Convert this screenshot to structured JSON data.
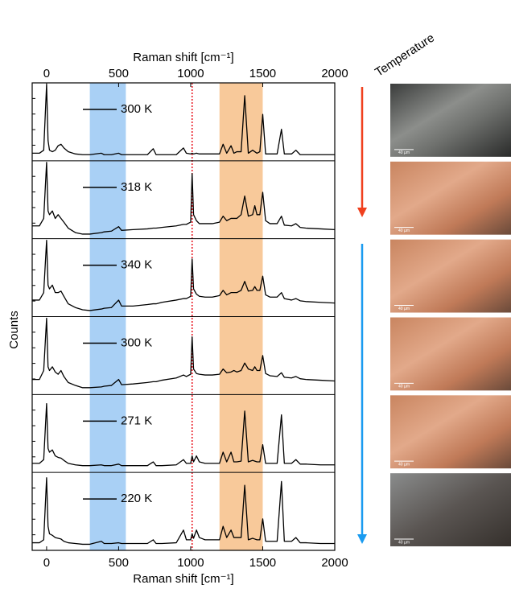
{
  "chart_data": {
    "type": "line",
    "x_label": "Raman shift [cm⁻¹]",
    "x2_label": "Raman shift [cm⁻¹]",
    "y_label": "Counts",
    "xlim": [
      -100,
      2000
    ],
    "xticks": [
      0,
      500,
      1000,
      1500,
      2000
    ],
    "line_color": "#000000",
    "bands": [
      {
        "range": [
          300,
          550
        ],
        "color": "#a9d0f5"
      },
      {
        "range": [
          1200,
          1500
        ],
        "color": "#f8c99a"
      }
    ],
    "marker_line": {
      "value": 1010,
      "color": "#e8101a"
    },
    "annotation": "Temperature",
    "x": [
      -100,
      -50,
      -20,
      0,
      10,
      20,
      40,
      60,
      80,
      100,
      120,
      150,
      200,
      250,
      300,
      380,
      400,
      450,
      500,
      520,
      600,
      700,
      740,
      760,
      800,
      900,
      950,
      970,
      1000,
      1010,
      1020,
      1040,
      1060,
      1100,
      1150,
      1200,
      1225,
      1250,
      1280,
      1300,
      1320,
      1350,
      1375,
      1400,
      1430,
      1445,
      1460,
      1480,
      1500,
      1520,
      1550,
      1600,
      1630,
      1650,
      1700,
      1730,
      1760,
      1800,
      1900,
      2000
    ],
    "series": [
      {
        "name": "300 K",
        "ylim": [
          0,
          1
        ],
        "values": [
          0.08,
          0.08,
          0.12,
          1.0,
          0.25,
          0.12,
          0.1,
          0.12,
          0.18,
          0.2,
          0.15,
          0.1,
          0.07,
          0.06,
          0.06,
          0.08,
          0.06,
          0.06,
          0.08,
          0.06,
          0.06,
          0.06,
          0.14,
          0.06,
          0.06,
          0.06,
          0.15,
          0.08,
          0.07,
          0.08,
          0.07,
          0.08,
          0.07,
          0.07,
          0.07,
          0.07,
          0.2,
          0.08,
          0.18,
          0.08,
          0.1,
          0.1,
          0.85,
          0.08,
          0.12,
          0.1,
          0.08,
          0.1,
          0.6,
          0.07,
          0.07,
          0.07,
          0.4,
          0.07,
          0.07,
          0.12,
          0.06,
          0.06,
          0.06,
          0.06
        ]
      },
      {
        "name": "318 K",
        "ylim": [
          0,
          1
        ],
        "values": [
          0.15,
          0.15,
          0.25,
          1.0,
          0.35,
          0.3,
          0.35,
          0.25,
          0.3,
          0.25,
          0.2,
          0.12,
          0.06,
          0.04,
          0.04,
          0.06,
          0.07,
          0.08,
          0.14,
          0.09,
          0.1,
          0.11,
          0.12,
          0.12,
          0.13,
          0.15,
          0.17,
          0.17,
          0.2,
          0.85,
          0.3,
          0.22,
          0.18,
          0.18,
          0.18,
          0.2,
          0.28,
          0.22,
          0.25,
          0.25,
          0.25,
          0.3,
          0.55,
          0.28,
          0.3,
          0.42,
          0.3,
          0.3,
          0.6,
          0.22,
          0.18,
          0.18,
          0.28,
          0.16,
          0.15,
          0.18,
          0.13,
          0.12,
          0.11,
          0.1
        ]
      },
      {
        "name": "340 K",
        "ylim": [
          0,
          1
        ],
        "values": [
          0.2,
          0.2,
          0.3,
          1.0,
          0.4,
          0.35,
          0.4,
          0.3,
          0.3,
          0.32,
          0.25,
          0.15,
          0.1,
          0.07,
          0.06,
          0.08,
          0.09,
          0.1,
          0.2,
          0.12,
          0.12,
          0.14,
          0.15,
          0.15,
          0.17,
          0.2,
          0.22,
          0.22,
          0.25,
          0.75,
          0.35,
          0.28,
          0.25,
          0.24,
          0.24,
          0.26,
          0.33,
          0.27,
          0.3,
          0.3,
          0.3,
          0.33,
          0.45,
          0.32,
          0.33,
          0.38,
          0.33,
          0.33,
          0.52,
          0.27,
          0.24,
          0.24,
          0.3,
          0.22,
          0.2,
          0.22,
          0.19,
          0.18,
          0.17,
          0.16
        ]
      },
      {
        "name": "300 K",
        "ylim": [
          0,
          1
        ],
        "values": [
          0.18,
          0.18,
          0.3,
          1.0,
          0.35,
          0.3,
          0.35,
          0.28,
          0.25,
          0.3,
          0.22,
          0.14,
          0.1,
          0.07,
          0.07,
          0.08,
          0.09,
          0.1,
          0.18,
          0.11,
          0.12,
          0.14,
          0.15,
          0.15,
          0.17,
          0.2,
          0.24,
          0.22,
          0.25,
          0.75,
          0.32,
          0.26,
          0.25,
          0.24,
          0.24,
          0.25,
          0.32,
          0.27,
          0.28,
          0.3,
          0.28,
          0.3,
          0.4,
          0.32,
          0.3,
          0.35,
          0.3,
          0.3,
          0.5,
          0.26,
          0.23,
          0.22,
          0.27,
          0.21,
          0.2,
          0.22,
          0.19,
          0.18,
          0.17,
          0.16
        ]
      },
      {
        "name": "271 K",
        "ylim": [
          0,
          1
        ],
        "values": [
          0.1,
          0.1,
          0.15,
          0.9,
          0.3,
          0.25,
          0.28,
          0.2,
          0.18,
          0.17,
          0.14,
          0.1,
          0.08,
          0.07,
          0.07,
          0.08,
          0.07,
          0.07,
          0.09,
          0.07,
          0.07,
          0.07,
          0.12,
          0.07,
          0.07,
          0.08,
          0.15,
          0.1,
          0.1,
          0.2,
          0.12,
          0.2,
          0.12,
          0.1,
          0.1,
          0.1,
          0.25,
          0.12,
          0.25,
          0.12,
          0.12,
          0.13,
          0.8,
          0.12,
          0.14,
          0.13,
          0.12,
          0.12,
          0.35,
          0.1,
          0.1,
          0.1,
          0.75,
          0.1,
          0.1,
          0.15,
          0.09,
          0.09,
          0.08,
          0.08
        ]
      },
      {
        "name": "220 K",
        "ylim": [
          0,
          1
        ],
        "values": [
          0.08,
          0.08,
          0.12,
          0.95,
          0.3,
          0.2,
          0.18,
          0.15,
          0.14,
          0.13,
          0.1,
          0.08,
          0.07,
          0.06,
          0.06,
          0.1,
          0.07,
          0.07,
          0.08,
          0.07,
          0.07,
          0.07,
          0.12,
          0.07,
          0.07,
          0.08,
          0.25,
          0.12,
          0.12,
          0.2,
          0.14,
          0.25,
          0.15,
          0.12,
          0.12,
          0.12,
          0.3,
          0.15,
          0.25,
          0.15,
          0.15,
          0.15,
          0.85,
          0.12,
          0.14,
          0.13,
          0.12,
          0.12,
          0.4,
          0.1,
          0.1,
          0.1,
          0.9,
          0.1,
          0.1,
          0.15,
          0.08,
          0.08,
          0.07,
          0.07
        ]
      }
    ],
    "images": [
      {
        "scale_label": "40 µm"
      },
      {
        "scale_label": "40 µm"
      },
      {
        "scale_label": "40 µm"
      },
      {
        "scale_label": "40 µm"
      },
      {
        "scale_label": "40 µm"
      },
      {
        "scale_label": "40 µm"
      }
    ]
  }
}
